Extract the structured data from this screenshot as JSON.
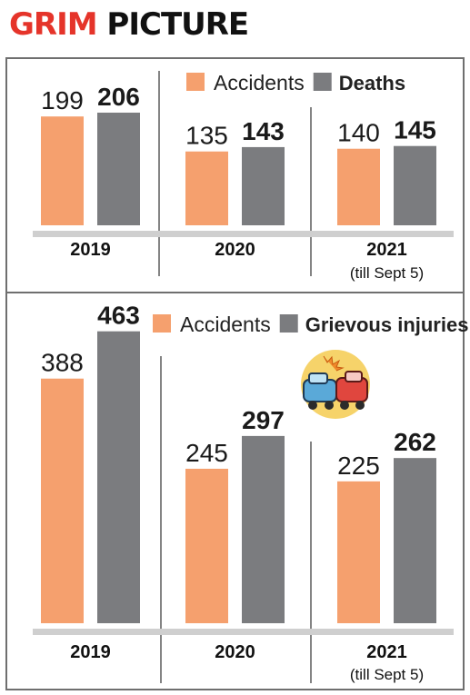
{
  "title": {
    "word1": "GRIM",
    "word2": "PICTURE"
  },
  "colors": {
    "accidents": "#f5a06e",
    "second": "#7b7c7f",
    "title_red": "#e5342a",
    "baseline": "#cfcfcf"
  },
  "chart_data": [
    {
      "type": "bar",
      "categories": [
        "2019",
        "2020",
        "2021"
      ],
      "category_notes": [
        "",
        "",
        "(till Sept 5)"
      ],
      "series": [
        {
          "name": "Accidents",
          "values": [
            199,
            135,
            140
          ]
        },
        {
          "name": "Deaths",
          "values": [
            206,
            143,
            145
          ]
        }
      ],
      "legend": [
        "Accidents",
        "Deaths"
      ]
    },
    {
      "type": "bar",
      "categories": [
        "2019",
        "2020",
        "2021"
      ],
      "category_notes": [
        "",
        "",
        "(till Sept 5)"
      ],
      "series": [
        {
          "name": "Accidents",
          "values": [
            388,
            245,
            225
          ]
        },
        {
          "name": "Grievous injuries",
          "values": [
            463,
            297,
            262
          ]
        }
      ],
      "legend": [
        "Accidents",
        "Grievous injuries"
      ]
    }
  ],
  "icons": {
    "crash": "car-crash-icon"
  }
}
